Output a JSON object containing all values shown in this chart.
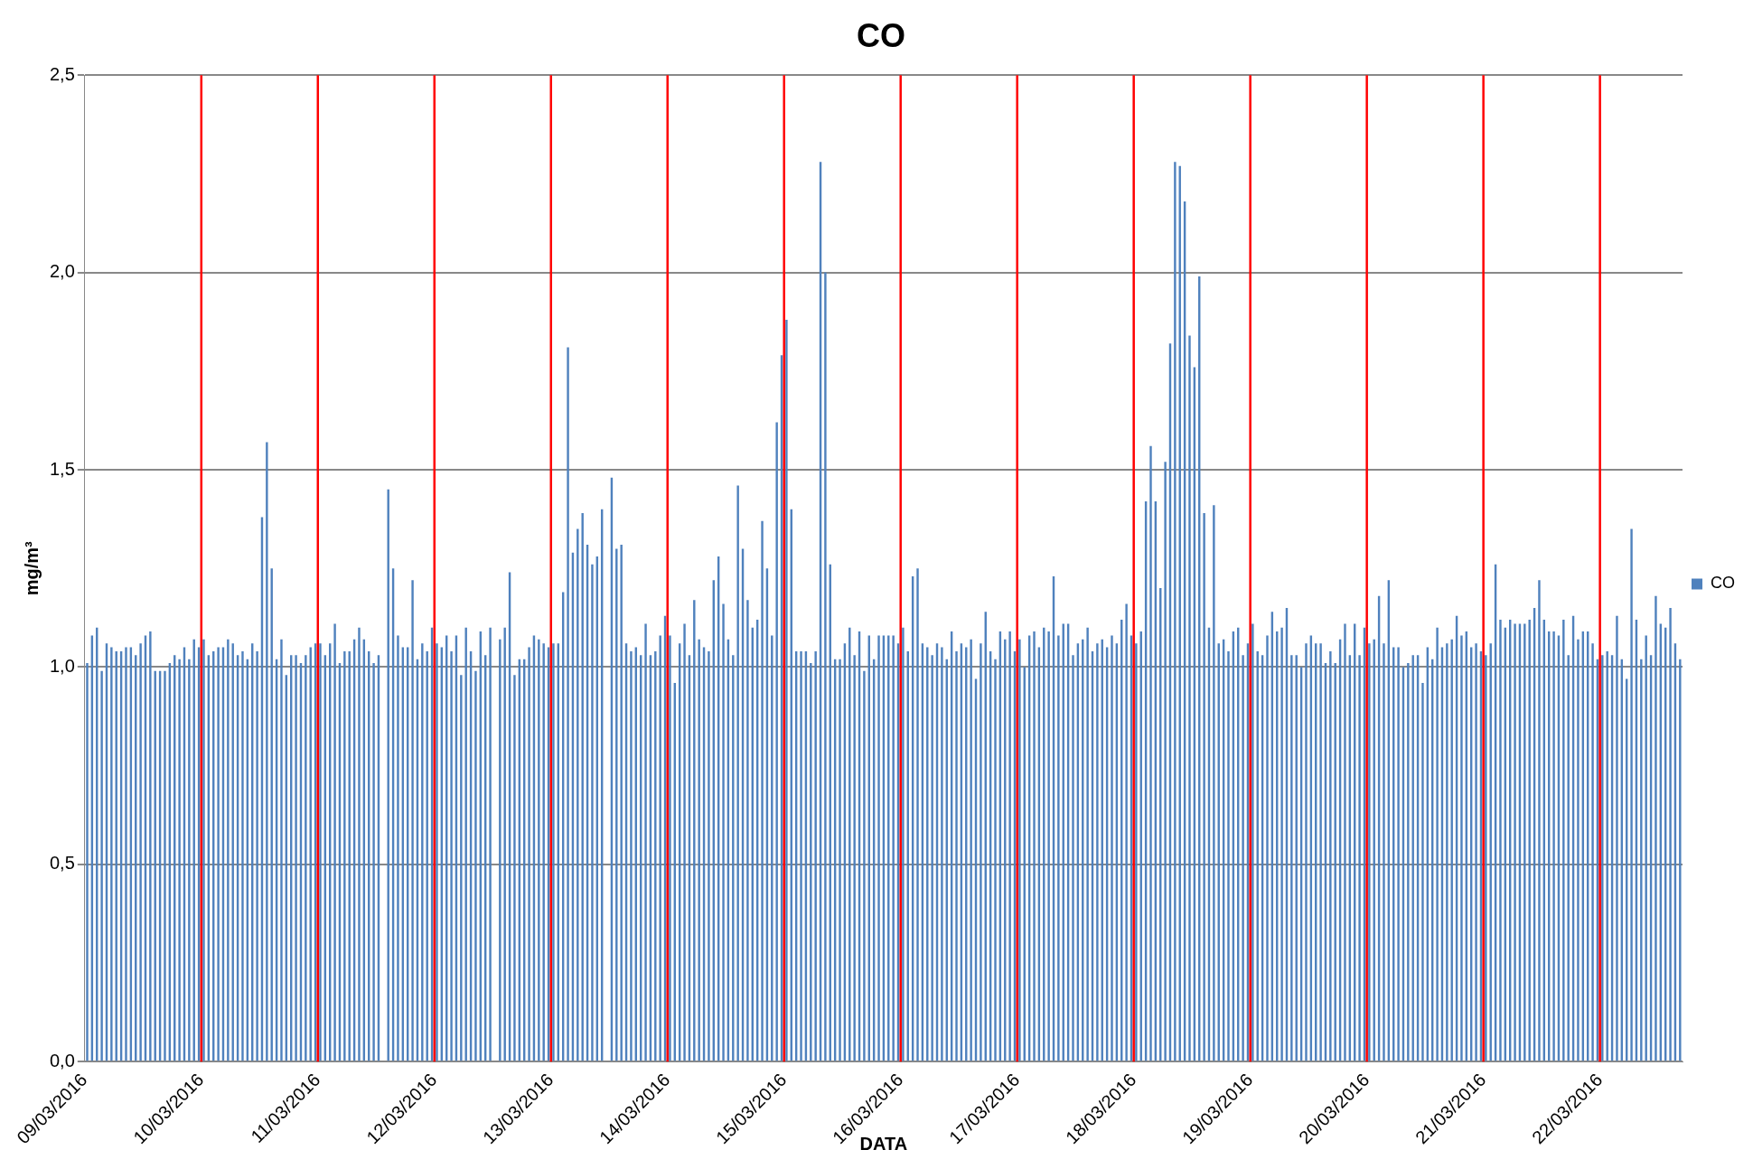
{
  "chart_data": {
    "type": "bar",
    "title": "CO",
    "xlabel": "DATA",
    "ylabel": "mg/m³",
    "x": [
      "2016-03-09T00:30",
      "2016-03-09T01:30",
      "2016-03-09T02:30",
      "2016-03-09T03:30",
      "2016-03-09T04:30",
      "2016-03-09T05:30",
      "2016-03-09T06:30",
      "2016-03-09T07:30",
      "2016-03-09T08:30",
      "2016-03-09T09:30",
      "2016-03-09T10:30",
      "2016-03-09T11:30",
      "2016-03-09T12:30",
      "2016-03-09T13:30",
      "2016-03-09T14:30",
      "2016-03-09T15:30",
      "2016-03-09T16:30",
      "2016-03-09T17:30",
      "2016-03-09T18:30",
      "2016-03-09T19:30",
      "2016-03-09T20:30",
      "2016-03-09T21:30",
      "2016-03-09T22:30",
      "2016-03-09T23:30",
      "2016-03-10T00:30",
      "2016-03-10T01:30",
      "2016-03-10T02:30",
      "2016-03-10T03:30",
      "2016-03-10T04:30",
      "2016-03-10T05:30",
      "2016-03-10T06:30",
      "2016-03-10T07:30",
      "2016-03-10T08:30",
      "2016-03-10T09:30",
      "2016-03-10T10:30",
      "2016-03-10T11:30",
      "2016-03-10T12:30",
      "2016-03-10T13:30",
      "2016-03-10T14:30",
      "2016-03-10T15:30",
      "2016-03-10T16:30",
      "2016-03-10T17:30",
      "2016-03-10T18:30",
      "2016-03-10T19:30",
      "2016-03-10T20:30",
      "2016-03-10T21:30",
      "2016-03-10T22:30",
      "2016-03-10T23:30",
      "2016-03-11T00:30",
      "2016-03-11T01:30",
      "2016-03-11T02:30",
      "2016-03-11T03:30",
      "2016-03-11T04:30",
      "2016-03-11T05:30",
      "2016-03-11T06:30",
      "2016-03-11T07:30",
      "2016-03-11T08:30",
      "2016-03-11T09:30",
      "2016-03-11T10:30",
      "2016-03-11T11:30",
      "2016-03-11T12:30",
      "2016-03-11T13:30",
      "2016-03-11T14:30",
      "2016-03-11T15:30",
      "2016-03-11T16:30",
      "2016-03-11T17:30",
      "2016-03-11T18:30",
      "2016-03-11T19:30",
      "2016-03-11T20:30",
      "2016-03-11T21:30",
      "2016-03-11T22:30",
      "2016-03-11T23:30",
      "2016-03-12T00:30",
      "2016-03-12T01:30",
      "2016-03-12T02:30",
      "2016-03-12T03:30",
      "2016-03-12T04:30",
      "2016-03-12T05:30",
      "2016-03-12T06:30",
      "2016-03-12T07:30",
      "2016-03-12T08:30",
      "2016-03-12T09:30",
      "2016-03-12T10:30",
      "2016-03-12T11:30",
      "2016-03-12T12:30",
      "2016-03-12T13:30",
      "2016-03-12T14:30",
      "2016-03-12T15:30",
      "2016-03-12T16:30",
      "2016-03-12T17:30",
      "2016-03-12T18:30",
      "2016-03-12T19:30",
      "2016-03-12T20:30",
      "2016-03-12T21:30",
      "2016-03-12T22:30",
      "2016-03-12T23:30",
      "2016-03-13T00:30",
      "2016-03-13T01:30",
      "2016-03-13T02:30",
      "2016-03-13T03:30",
      "2016-03-13T04:30",
      "2016-03-13T05:30",
      "2016-03-13T06:30",
      "2016-03-13T07:30",
      "2016-03-13T08:30",
      "2016-03-13T09:30",
      "2016-03-13T10:30",
      "2016-03-13T11:30",
      "2016-03-13T12:30",
      "2016-03-13T13:30",
      "2016-03-13T14:30",
      "2016-03-13T15:30",
      "2016-03-13T16:30",
      "2016-03-13T17:30",
      "2016-03-13T18:30",
      "2016-03-13T19:30",
      "2016-03-13T20:30",
      "2016-03-13T21:30",
      "2016-03-13T22:30",
      "2016-03-13T23:30",
      "2016-03-14T00:30",
      "2016-03-14T01:30",
      "2016-03-14T02:30",
      "2016-03-14T03:30",
      "2016-03-14T04:30",
      "2016-03-14T05:30",
      "2016-03-14T06:30",
      "2016-03-14T07:30",
      "2016-03-14T08:30",
      "2016-03-14T09:30",
      "2016-03-14T10:30",
      "2016-03-14T11:30",
      "2016-03-14T12:30",
      "2016-03-14T13:30",
      "2016-03-14T14:30",
      "2016-03-14T15:30",
      "2016-03-14T16:30",
      "2016-03-14T17:30",
      "2016-03-14T18:30",
      "2016-03-14T19:30",
      "2016-03-14T20:30",
      "2016-03-14T21:30",
      "2016-03-14T22:30",
      "2016-03-14T23:30",
      "2016-03-15T00:30",
      "2016-03-15T01:30",
      "2016-03-15T02:30",
      "2016-03-15T03:30",
      "2016-03-15T04:30",
      "2016-03-15T05:30",
      "2016-03-15T06:30",
      "2016-03-15T07:30",
      "2016-03-15T08:30",
      "2016-03-15T09:30",
      "2016-03-15T10:30",
      "2016-03-15T11:30",
      "2016-03-15T12:30",
      "2016-03-15T13:30",
      "2016-03-15T14:30",
      "2016-03-15T15:30",
      "2016-03-15T16:30",
      "2016-03-15T17:30",
      "2016-03-15T18:30",
      "2016-03-15T19:30",
      "2016-03-15T20:30",
      "2016-03-15T21:30",
      "2016-03-15T22:30",
      "2016-03-15T23:30",
      "2016-03-16T00:30",
      "2016-03-16T01:30",
      "2016-03-16T02:30",
      "2016-03-16T03:30",
      "2016-03-16T04:30",
      "2016-03-16T05:30",
      "2016-03-16T06:30",
      "2016-03-16T07:30",
      "2016-03-16T08:30",
      "2016-03-16T09:30",
      "2016-03-16T10:30",
      "2016-03-16T11:30",
      "2016-03-16T12:30",
      "2016-03-16T13:30",
      "2016-03-16T14:30",
      "2016-03-16T15:30",
      "2016-03-16T16:30",
      "2016-03-16T17:30",
      "2016-03-16T18:30",
      "2016-03-16T19:30",
      "2016-03-16T20:30",
      "2016-03-16T21:30",
      "2016-03-16T22:30",
      "2016-03-16T23:30",
      "2016-03-17T00:30",
      "2016-03-17T01:30",
      "2016-03-17T02:30",
      "2016-03-17T03:30",
      "2016-03-17T04:30",
      "2016-03-17T05:30",
      "2016-03-17T06:30",
      "2016-03-17T07:30",
      "2016-03-17T08:30",
      "2016-03-17T09:30",
      "2016-03-17T10:30",
      "2016-03-17T11:30",
      "2016-03-17T12:30",
      "2016-03-17T13:30",
      "2016-03-17T14:30",
      "2016-03-17T15:30",
      "2016-03-17T16:30",
      "2016-03-17T17:30",
      "2016-03-17T18:30",
      "2016-03-17T19:30",
      "2016-03-17T20:30",
      "2016-03-17T21:30",
      "2016-03-17T22:30",
      "2016-03-17T23:30",
      "2016-03-18T00:30",
      "2016-03-18T01:30",
      "2016-03-18T02:30",
      "2016-03-18T03:30",
      "2016-03-18T04:30",
      "2016-03-18T05:30",
      "2016-03-18T06:30",
      "2016-03-18T07:30",
      "2016-03-18T08:30",
      "2016-03-18T09:30",
      "2016-03-18T10:30",
      "2016-03-18T11:30",
      "2016-03-18T12:30",
      "2016-03-18T13:30",
      "2016-03-18T14:30",
      "2016-03-18T15:30",
      "2016-03-18T16:30",
      "2016-03-18T17:30",
      "2016-03-18T18:30",
      "2016-03-18T19:30",
      "2016-03-18T20:30",
      "2016-03-18T21:30",
      "2016-03-18T22:30",
      "2016-03-18T23:30",
      "2016-03-19T00:30",
      "2016-03-19T01:30",
      "2016-03-19T02:30",
      "2016-03-19T03:30",
      "2016-03-19T04:30",
      "2016-03-19T05:30",
      "2016-03-19T06:30",
      "2016-03-19T07:30",
      "2016-03-19T08:30",
      "2016-03-19T09:30",
      "2016-03-19T10:30",
      "2016-03-19T11:30",
      "2016-03-19T12:30",
      "2016-03-19T13:30",
      "2016-03-19T14:30",
      "2016-03-19T15:30",
      "2016-03-19T16:30",
      "2016-03-19T17:30",
      "2016-03-19T18:30",
      "2016-03-19T19:30",
      "2016-03-19T20:30",
      "2016-03-19T21:30",
      "2016-03-19T22:30",
      "2016-03-19T23:30",
      "2016-03-20T00:30",
      "2016-03-20T01:30",
      "2016-03-20T02:30",
      "2016-03-20T03:30",
      "2016-03-20T04:30",
      "2016-03-20T05:30",
      "2016-03-20T06:30",
      "2016-03-20T07:30",
      "2016-03-20T08:30",
      "2016-03-20T09:30",
      "2016-03-20T10:30",
      "2016-03-20T11:30",
      "2016-03-20T12:30",
      "2016-03-20T13:30",
      "2016-03-20T14:30",
      "2016-03-20T15:30",
      "2016-03-20T16:30",
      "2016-03-20T17:30",
      "2016-03-20T18:30",
      "2016-03-20T19:30",
      "2016-03-20T20:30",
      "2016-03-20T21:30",
      "2016-03-20T22:30",
      "2016-03-20T23:30",
      "2016-03-21T00:30",
      "2016-03-21T01:30",
      "2016-03-21T02:30",
      "2016-03-21T03:30",
      "2016-03-21T04:30",
      "2016-03-21T05:30",
      "2016-03-21T06:30",
      "2016-03-21T07:30",
      "2016-03-21T08:30",
      "2016-03-21T09:30",
      "2016-03-21T10:30",
      "2016-03-21T11:30",
      "2016-03-21T12:30",
      "2016-03-21T13:30",
      "2016-03-21T14:30",
      "2016-03-21T15:30",
      "2016-03-21T16:30",
      "2016-03-21T17:30",
      "2016-03-21T18:30",
      "2016-03-21T19:30",
      "2016-03-21T20:30",
      "2016-03-21T21:30",
      "2016-03-21T22:30",
      "2016-03-21T23:30",
      "2016-03-22T00:30",
      "2016-03-22T01:30",
      "2016-03-22T02:30",
      "2016-03-22T03:30",
      "2016-03-22T04:30",
      "2016-03-22T05:30",
      "2016-03-22T06:30",
      "2016-03-22T07:30",
      "2016-03-22T08:30",
      "2016-03-22T09:30",
      "2016-03-22T10:30",
      "2016-03-22T11:30",
      "2016-03-22T12:30",
      "2016-03-22T13:30",
      "2016-03-22T14:30",
      "2016-03-22T15:30",
      "2016-03-22T16:30"
    ],
    "series": [
      {
        "name": "CO",
        "color": "#4f81bd",
        "values": [
          1.01,
          1.08,
          1.1,
          0.99,
          1.06,
          1.05,
          1.04,
          1.04,
          1.05,
          1.05,
          1.03,
          1.06,
          1.08,
          1.09,
          0.99,
          0.99,
          0.99,
          1.01,
          1.03,
          1.02,
          1.05,
          1.02,
          1.07,
          1.05,
          1.07,
          1.03,
          1.04,
          1.05,
          1.05,
          1.07,
          1.06,
          1.03,
          1.04,
          1.02,
          1.06,
          1.04,
          1.38,
          1.57,
          1.25,
          1.02,
          1.07,
          0.98,
          1.03,
          1.03,
          1.01,
          1.03,
          1.05,
          1.06,
          1.06,
          1.03,
          1.06,
          1.11,
          1.01,
          1.04,
          1.04,
          1.07,
          1.1,
          1.07,
          1.04,
          1.01,
          1.03,
          null,
          1.45,
          1.25,
          1.08,
          1.05,
          1.05,
          1.22,
          1.02,
          1.06,
          1.04,
          1.1,
          1.06,
          1.05,
          1.08,
          1.04,
          1.08,
          0.98,
          1.1,
          1.04,
          0.99,
          1.09,
          1.03,
          1.1,
          null,
          1.07,
          1.1,
          1.24,
          0.98,
          1.02,
          1.02,
          1.05,
          1.08,
          1.07,
          1.06,
          1.05,
          1.06,
          1.06,
          1.19,
          1.81,
          1.29,
          1.35,
          1.39,
          1.31,
          1.26,
          1.28,
          1.4,
          null,
          1.48,
          1.3,
          1.31,
          1.06,
          1.04,
          1.05,
          1.03,
          1.11,
          1.03,
          1.04,
          1.08,
          1.13,
          1.08,
          0.96,
          1.06,
          1.11,
          1.03,
          1.17,
          1.07,
          1.05,
          1.04,
          1.22,
          1.28,
          1.16,
          1.07,
          1.03,
          1.46,
          1.3,
          1.17,
          1.1,
          1.12,
          1.37,
          1.25,
          1.08,
          1.62,
          1.79,
          1.88,
          1.4,
          1.04,
          1.04,
          1.04,
          1.01,
          1.04,
          2.28,
          2.0,
          1.26,
          1.02,
          1.02,
          1.06,
          1.1,
          1.03,
          1.09,
          0.99,
          1.08,
          1.02,
          1.08,
          1.08,
          1.08,
          1.08,
          1.06,
          1.1,
          1.04,
          1.23,
          1.25,
          1.06,
          1.05,
          1.03,
          1.06,
          1.05,
          1.02,
          1.09,
          1.04,
          1.06,
          1.05,
          1.07,
          0.97,
          1.06,
          1.14,
          1.04,
          1.02,
          1.09,
          1.07,
          1.09,
          1.04,
          1.07,
          1.0,
          1.08,
          1.09,
          1.05,
          1.1,
          1.09,
          1.23,
          1.08,
          1.11,
          1.11,
          1.03,
          1.06,
          1.07,
          1.1,
          1.04,
          1.06,
          1.07,
          1.05,
          1.08,
          1.06,
          1.12,
          1.16,
          1.08,
          1.06,
          1.09,
          1.42,
          1.56,
          1.42,
          1.2,
          1.52,
          1.82,
          2.28,
          2.27,
          2.18,
          1.84,
          1.76,
          1.99,
          1.39,
          1.1,
          1.41,
          1.06,
          1.07,
          1.04,
          1.09,
          1.1,
          1.03,
          1.06,
          1.11,
          1.04,
          1.03,
          1.08,
          1.14,
          1.09,
          1.1,
          1.15,
          1.03,
          1.03,
          1.0,
          1.06,
          1.08,
          1.06,
          1.06,
          1.01,
          1.04,
          1.01,
          1.07,
          1.11,
          1.03,
          1.11,
          1.03,
          1.1,
          1.06,
          1.07,
          1.18,
          1.06,
          1.22,
          1.05,
          1.05,
          1.0,
          1.01,
          1.03,
          1.03,
          0.96,
          1.05,
          1.02,
          1.1,
          1.05,
          1.06,
          1.07,
          1.13,
          1.08,
          1.09,
          1.05,
          1.06,
          1.04,
          1.03,
          1.06,
          1.26,
          1.12,
          1.1,
          1.12,
          1.11,
          1.11,
          1.11,
          1.12,
          1.15,
          1.22,
          1.12,
          1.09,
          1.09,
          1.08,
          1.12,
          1.03,
          1.13,
          1.07,
          1.09,
          1.09,
          1.06,
          1.02,
          1.03,
          1.04,
          1.03,
          1.13,
          1.02,
          0.97,
          1.35,
          1.12,
          1.02,
          1.08,
          1.03,
          1.18,
          1.11,
          1.1,
          1.15,
          1.06,
          1.02
        ]
      }
    ],
    "xlim": [
      "2016-03-09T00:00",
      "2016-03-22T17:00"
    ],
    "xticks": [
      {
        "value": "2016-03-09",
        "label": "09/03/2016"
      },
      {
        "value": "2016-03-10",
        "label": "10/03/2016"
      },
      {
        "value": "2016-03-11",
        "label": "11/03/2016"
      },
      {
        "value": "2016-03-12",
        "label": "12/03/2016"
      },
      {
        "value": "2016-03-13",
        "label": "13/03/2016"
      },
      {
        "value": "2016-03-14",
        "label": "14/03/2016"
      },
      {
        "value": "2016-03-15",
        "label": "15/03/2016"
      },
      {
        "value": "2016-03-16",
        "label": "16/03/2016"
      },
      {
        "value": "2016-03-17",
        "label": "17/03/2016"
      },
      {
        "value": "2016-03-18",
        "label": "18/03/2016"
      },
      {
        "value": "2016-03-19",
        "label": "19/03/2016"
      },
      {
        "value": "2016-03-20",
        "label": "20/03/2016"
      },
      {
        "value": "2016-03-21",
        "label": "21/03/2016"
      },
      {
        "value": "2016-03-22",
        "label": "22/03/2016"
      }
    ],
    "ylim": [
      0,
      2.5
    ],
    "yticks": [
      {
        "value": 0,
        "label": "0,0"
      },
      {
        "value": 0.5,
        "label": "0,5"
      },
      {
        "value": 1,
        "label": "1,0"
      },
      {
        "value": 1.5,
        "label": "1,5"
      },
      {
        "value": 2,
        "label": "2,0"
      },
      {
        "value": 2.5,
        "label": "2,5"
      }
    ],
    "grid": "y",
    "legend": "right",
    "ref_lines": [
      {
        "axis": "x",
        "value": "2016-03-10",
        "color": "#ff0000"
      },
      {
        "axis": "x",
        "value": "2016-03-11",
        "color": "#ff0000"
      },
      {
        "axis": "x",
        "value": "2016-03-12",
        "color": "#ff0000"
      },
      {
        "axis": "x",
        "value": "2016-03-13",
        "color": "#ff0000"
      },
      {
        "axis": "x",
        "value": "2016-03-14",
        "color": "#ff0000"
      },
      {
        "axis": "x",
        "value": "2016-03-15",
        "color": "#ff0000"
      },
      {
        "axis": "x",
        "value": "2016-03-16",
        "color": "#ff0000"
      },
      {
        "axis": "x",
        "value": "2016-03-17",
        "color": "#ff0000"
      },
      {
        "axis": "x",
        "value": "2016-03-18",
        "color": "#ff0000"
      },
      {
        "axis": "x",
        "value": "2016-03-19",
        "color": "#ff0000"
      },
      {
        "axis": "x",
        "value": "2016-03-20",
        "color": "#ff0000"
      },
      {
        "axis": "x",
        "value": "2016-03-21",
        "color": "#ff0000"
      },
      {
        "axis": "x",
        "value": "2016-03-22",
        "color": "#ff0000"
      }
    ]
  }
}
